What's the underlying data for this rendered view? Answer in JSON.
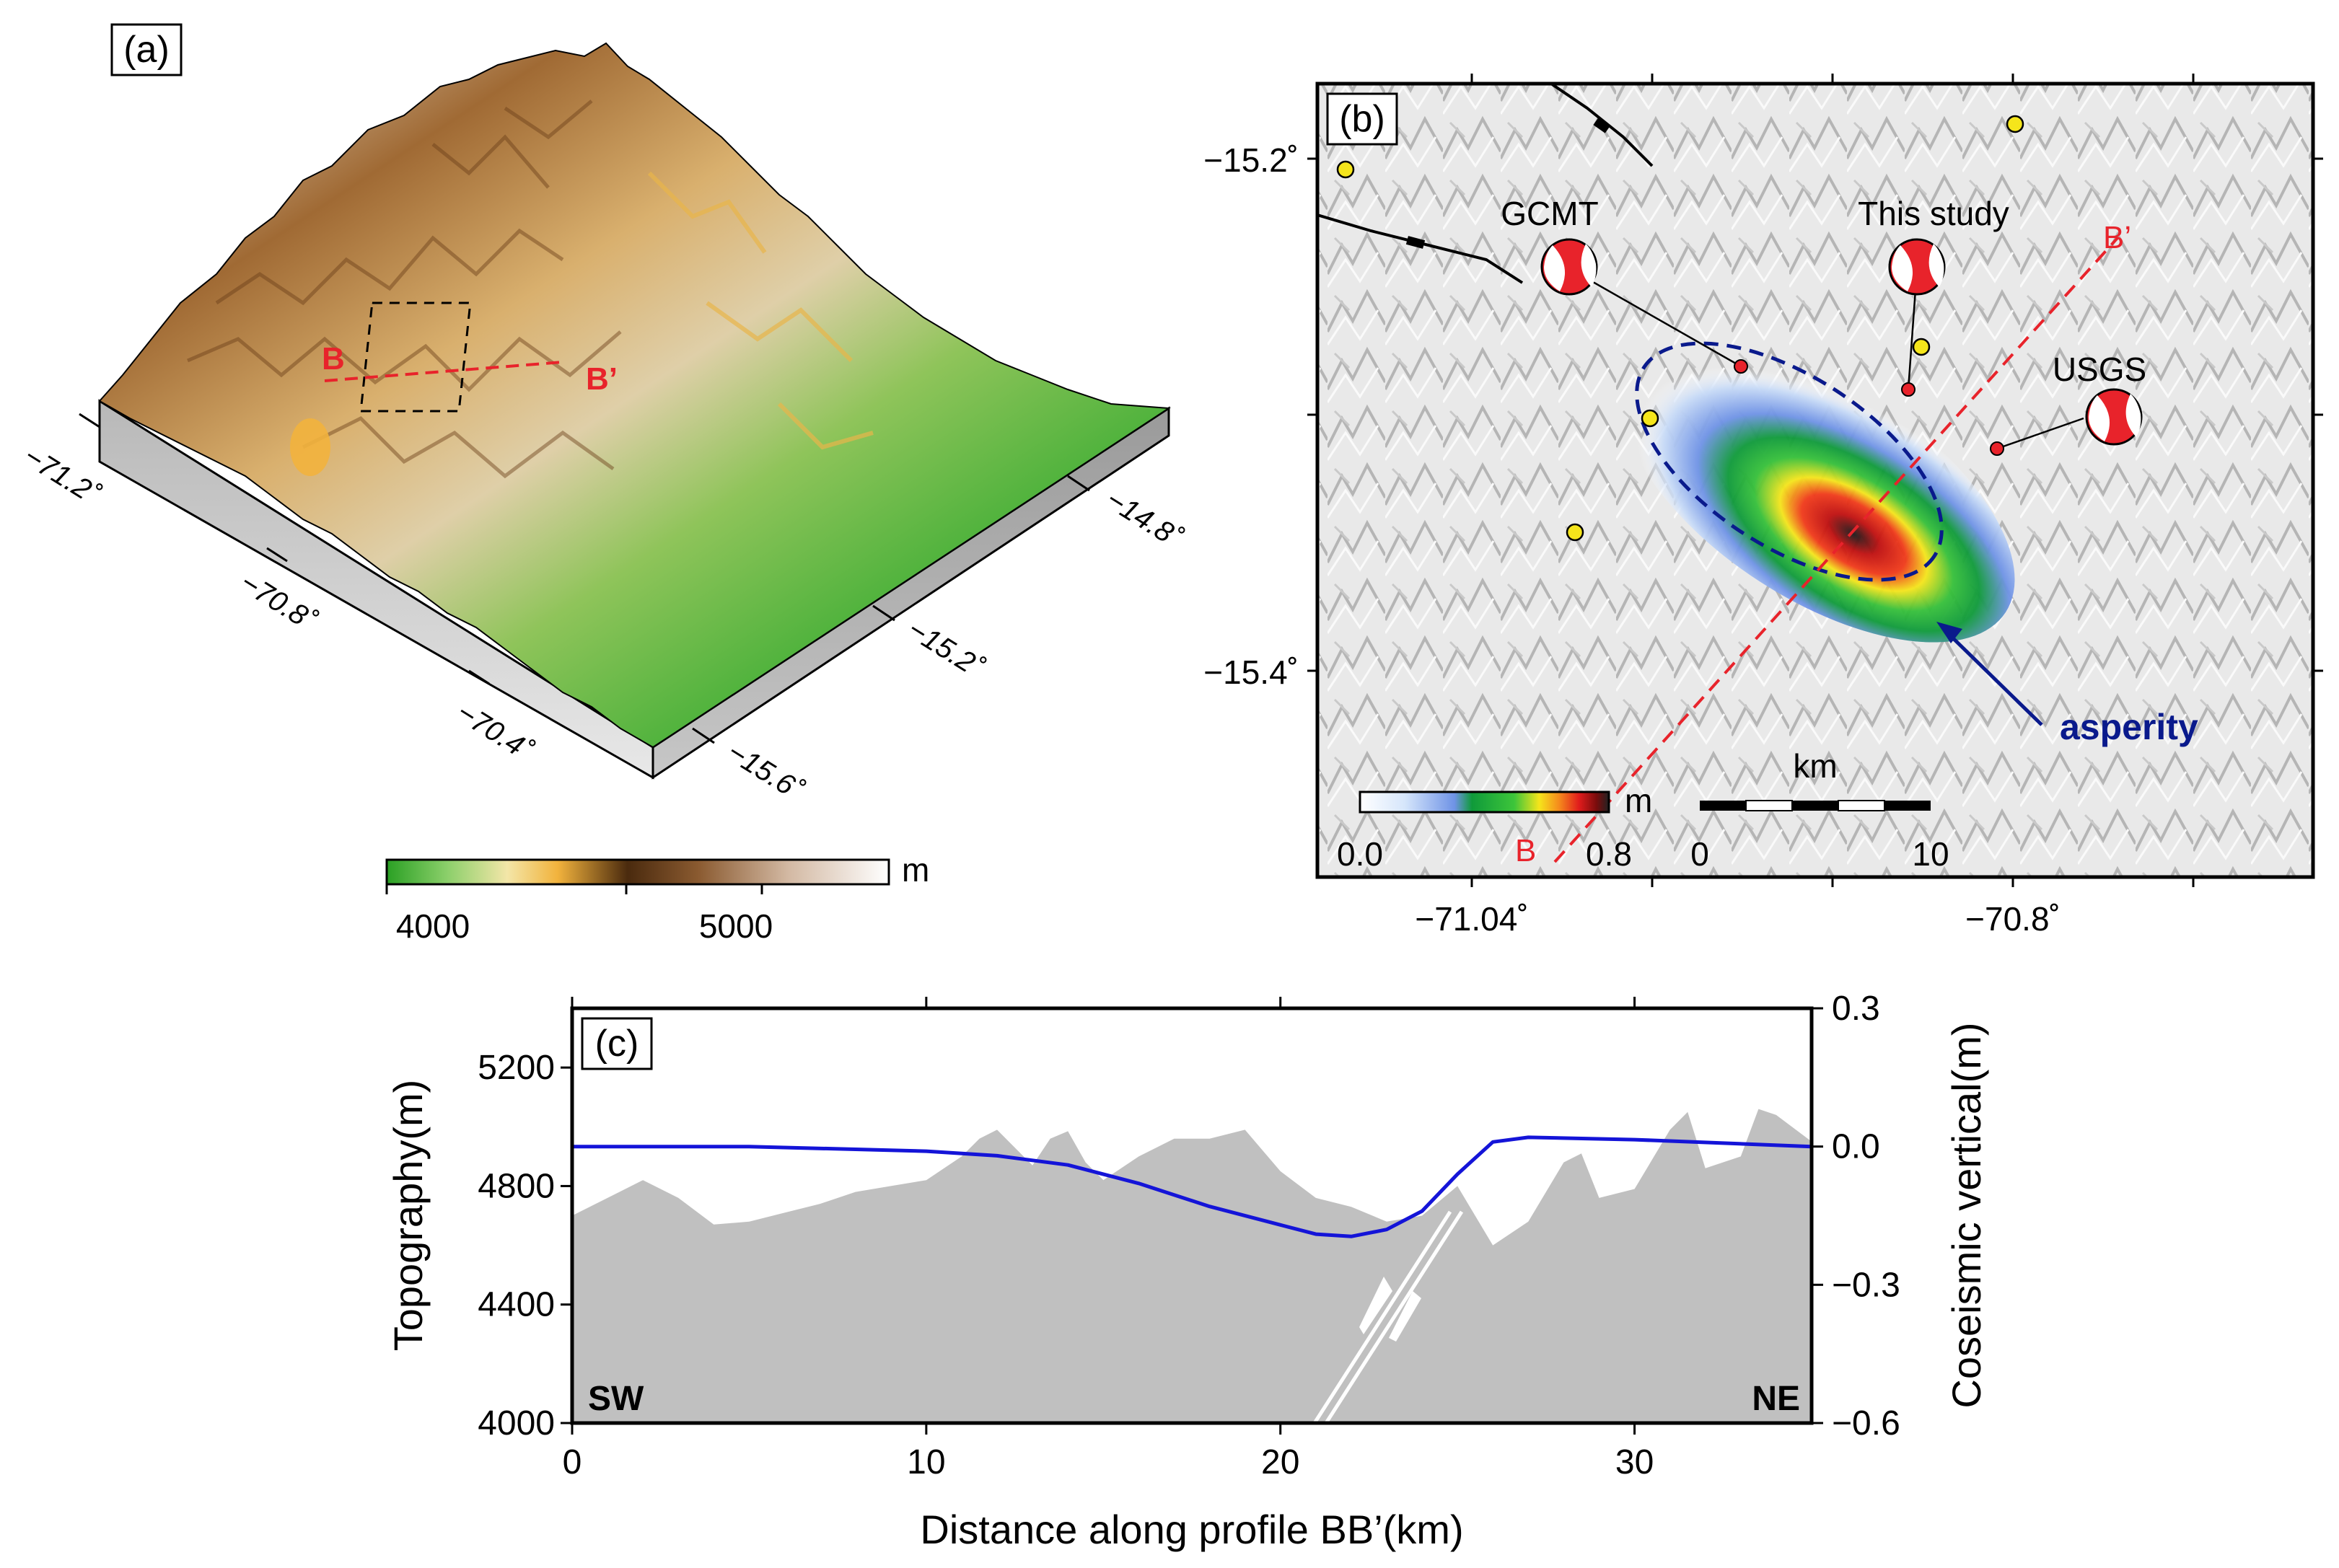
{
  "panel_a": {
    "label": "(a)",
    "lon_ticks": [
      "−71.2˚",
      "−70.8˚",
      "−70.4˚"
    ],
    "lat_ticks": [
      "−14.8˚",
      "−15.2˚",
      "−15.6˚"
    ],
    "profile_start": "B",
    "profile_end": "B’",
    "colorbar": {
      "ticks": [
        "4000",
        "5000"
      ],
      "unit": "m"
    },
    "colors": {
      "low": "#2e9f2a",
      "mid": "#f2b33d",
      "high": "#7a4a1e",
      "peak": "#ffffff"
    }
  },
  "panel_b": {
    "label": "(b)",
    "lat_ticks": [
      "−15.2˚",
      "−15.4˚"
    ],
    "lon_ticks": [
      "−71.04˚",
      "−70.8˚"
    ],
    "mechanisms": [
      "GCMT",
      "This study",
      "USGS"
    ],
    "profile_start": "B",
    "profile_end": "B’",
    "asperity_label": "asperity",
    "slip_colorbar": {
      "min": "0.0",
      "max": "0.8",
      "unit": "m"
    },
    "scale_bar": {
      "unit": "km",
      "min": "0",
      "max": "10"
    },
    "colors": {
      "profile": "#e8232b",
      "asperity": "#0a1a8c",
      "station": "#f5e51b"
    }
  },
  "chart_data": {
    "type": "area",
    "title": "(c)",
    "xlabel": "Distance along profile BB’(km)",
    "ylabel": "Topography(m)",
    "y2label": "Coseismic vertical(m)",
    "xlim": [
      0,
      35
    ],
    "ylim": [
      4000,
      5400
    ],
    "y2lim": [
      -0.6,
      0.3
    ],
    "x_ticks": [
      0,
      10,
      20,
      30
    ],
    "y_ticks": [
      4000,
      4400,
      4800,
      5200
    ],
    "y2_ticks": [
      "−0.6",
      "−0.3",
      "0.0",
      "0.3"
    ],
    "left_annotation": "SW",
    "right_annotation": "NE",
    "series": [
      {
        "name": "Topography",
        "axis": "left",
        "color": "#c0c0c0",
        "x": [
          0,
          1,
          2,
          3,
          4,
          5,
          6,
          7,
          8,
          9,
          10,
          11,
          11.5,
          12,
          13,
          13.5,
          14,
          14.5,
          15,
          16,
          17,
          18,
          19,
          20,
          21,
          22,
          23,
          24,
          25,
          26,
          27,
          28,
          28.5,
          29,
          30,
          31,
          31.5,
          32,
          33,
          33.5,
          34,
          35
        ],
        "values": [
          4700,
          4760,
          4820,
          4760,
          4670,
          4680,
          4710,
          4740,
          4780,
          4800,
          4820,
          4900,
          4960,
          4990,
          4870,
          4960,
          4985,
          4880,
          4820,
          4900,
          4960,
          4960,
          4990,
          4850,
          4760,
          4730,
          4680,
          4700,
          4800,
          4600,
          4680,
          4880,
          4910,
          4760,
          4790,
          4990,
          5050,
          4860,
          4900,
          5060,
          5040,
          4950
        ]
      },
      {
        "name": "Coseismic vertical",
        "axis": "right",
        "color": "#1414d8",
        "x": [
          0,
          5,
          10,
          12,
          14,
          16,
          18,
          20,
          21,
          22,
          23,
          24,
          25,
          26,
          27,
          30,
          35
        ],
        "values": [
          0.0,
          0.0,
          -0.01,
          -0.02,
          -0.04,
          -0.08,
          -0.13,
          -0.17,
          -0.19,
          -0.195,
          -0.18,
          -0.14,
          -0.06,
          0.01,
          0.02,
          0.015,
          0.0
        ]
      }
    ]
  }
}
